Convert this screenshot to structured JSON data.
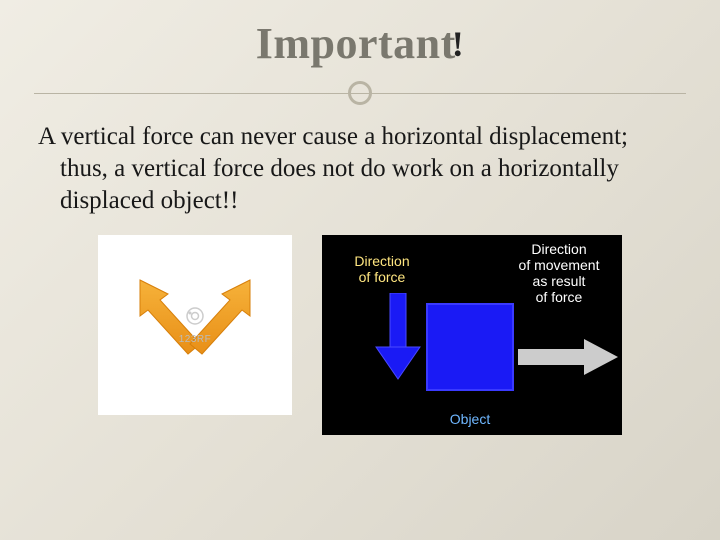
{
  "title": {
    "text": "Important",
    "bang": "!"
  },
  "body": "A vertical force can never cause a horizontal displacement; thus, a vertical force does not do work on a horizontally displaced object!!",
  "fig_left": {
    "background": "#ffffff",
    "arrow_color": "#f5a623",
    "watermark_text": "123RF"
  },
  "fig_right": {
    "background": "#000000",
    "labels": {
      "force": "Direction\nof force",
      "movement": "Direction\nof movement\nas result\nof force",
      "object": "Object"
    },
    "colors": {
      "force_label": "#ffe680",
      "move_label": "#ffffff",
      "object_label": "#6fb7ff",
      "object_fill": "#1a1af5",
      "force_arrow": "#1a1af5",
      "move_arrow": "#cccccc"
    }
  },
  "style": {
    "title_color": "#7a786e",
    "divider_color": "#b9b4a4"
  }
}
